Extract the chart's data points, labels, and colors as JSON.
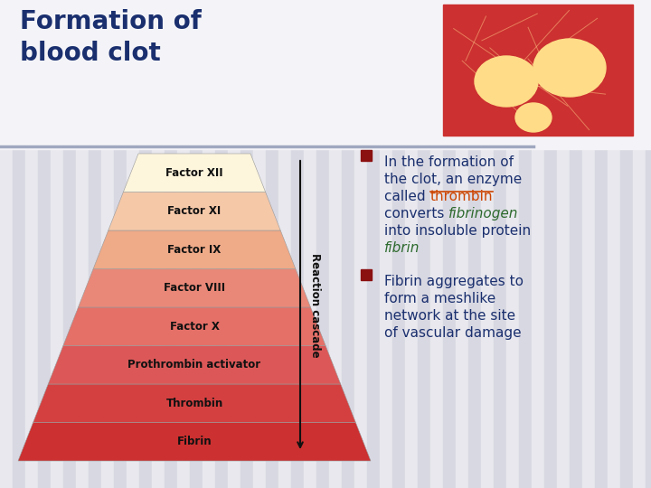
{
  "title_line1": "Formation of",
  "title_line2": "blood clot",
  "title_color": "#1a2f6e",
  "bg_color": "#f0f0f4",
  "stripe_light": "#e8e8ee",
  "stripe_dark": "#d8d8e2",
  "header_line_color": "#a0a8c0",
  "pyramid_layers": [
    {
      "label": "Factor XII",
      "color": "#fdf5dc"
    },
    {
      "label": "Factor XI",
      "color": "#f5c8a8"
    },
    {
      "label": "Factor IX",
      "color": "#efaa88"
    },
    {
      "label": "Factor VIII",
      "color": "#e98878"
    },
    {
      "label": "Factor X",
      "color": "#e47068"
    },
    {
      "label": "Prothrombin activator",
      "color": "#dc5858"
    },
    {
      "label": "Thrombin",
      "color": "#d44040"
    },
    {
      "label": "Fibrin",
      "color": "#cc3030"
    }
  ],
  "reaction_cascade_label": "Reaction cascade",
  "bullet_color": "#8b1010",
  "text_color": "#1a2f6e",
  "thrombin_color": "#cc4400",
  "fibrinogen_color": "#2d6a2d",
  "fibrin_color": "#2d6a2d",
  "font_size_title": 20,
  "font_size_pyramid": 8.5,
  "font_size_bullet": 11,
  "font_size_rc": 8.5
}
